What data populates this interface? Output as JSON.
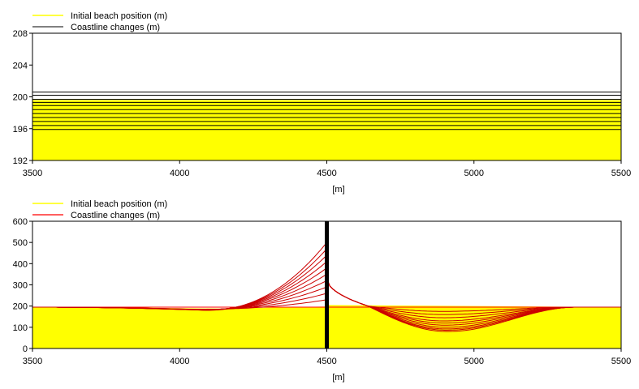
{
  "chart_data": [
    {
      "type": "line",
      "legend": [
        {
          "label": "Initial beach position (m)",
          "color": "#ffff00"
        },
        {
          "label": "Coastline changes (m)",
          "color": "#000000"
        }
      ],
      "xlabel": "[m]",
      "xlim": [
        3500,
        5500
      ],
      "xticks": [
        3500,
        4000,
        4500,
        5000,
        5500
      ],
      "ylim": [
        192,
        208
      ],
      "yticks": [
        192,
        196,
        200,
        204,
        208
      ],
      "initial_beach_position": 199.6,
      "coastline_changes": [
        195.9,
        196.4,
        196.9,
        197.4,
        197.9,
        198.4,
        198.9,
        199.3,
        199.7,
        200.2,
        200.6
      ]
    },
    {
      "type": "line",
      "legend": [
        {
          "label": "Initial beach position (m)",
          "color": "#ffff00"
        },
        {
          "label": "Coastline changes (m)",
          "color": "#ff0000"
        }
      ],
      "xlabel": "[m]",
      "xlim": [
        3500,
        5500
      ],
      "xticks": [
        3500,
        4000,
        4500,
        5000,
        5500
      ],
      "ylim": [
        0,
        600
      ],
      "yticks": [
        0,
        100,
        200,
        300,
        400,
        500,
        600
      ],
      "initial_beach_position": 200,
      "structure_x": 4500,
      "updrift_peak_values": [
        230,
        260,
        290,
        320,
        350,
        380,
        410,
        440,
        470,
        500
      ],
      "downdrift_trough_values": [
        175,
        160,
        145,
        130,
        120,
        110,
        100,
        92,
        86,
        80
      ],
      "downdrift_start_value": 330
    }
  ]
}
